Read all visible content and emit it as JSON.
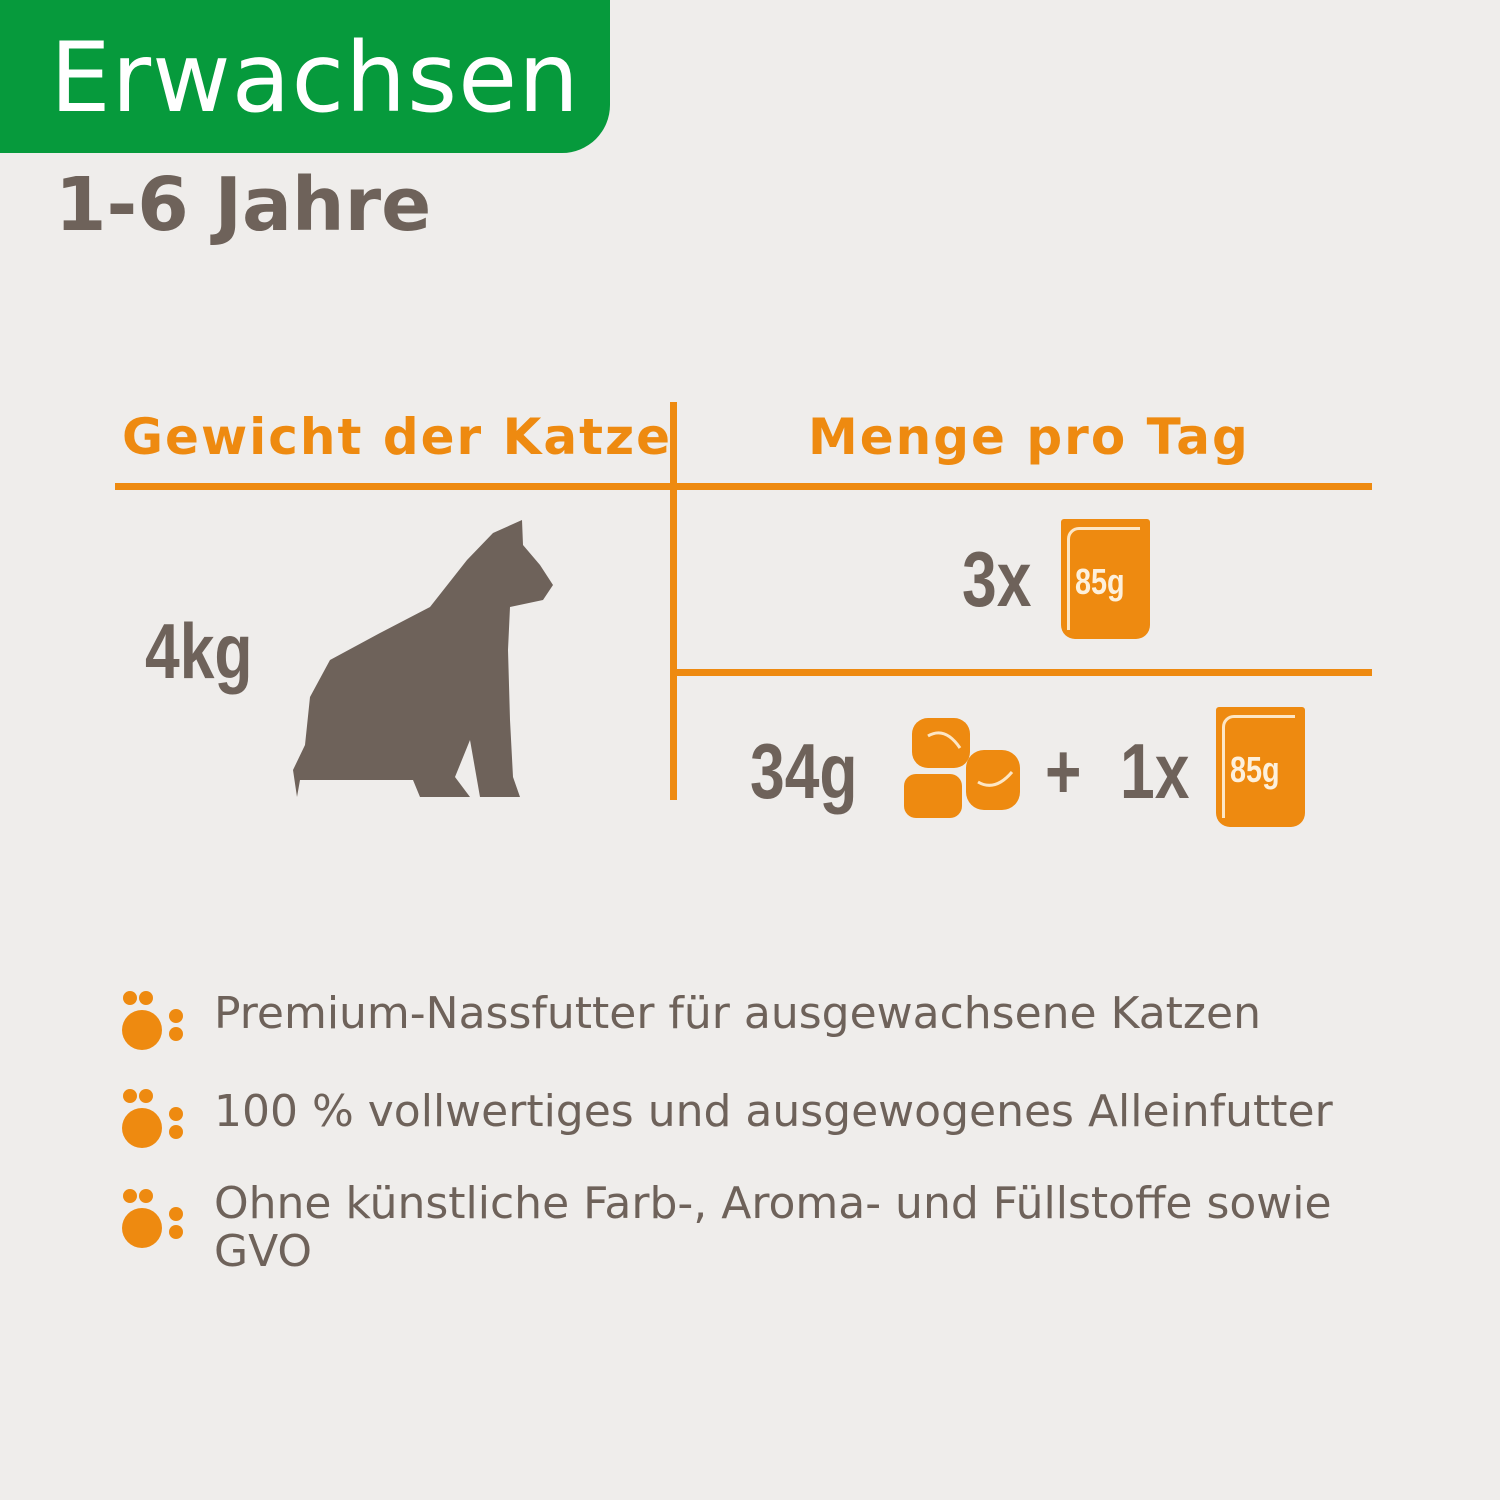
{
  "header": {
    "badge": "Erwachsen",
    "age_range": "1-6 Jahre"
  },
  "table": {
    "col1_header": "Gewicht der Katze",
    "col2_header": "Menge pro Tag",
    "weight": "4kg",
    "option1": {
      "count": "3x",
      "pouch_label": "85g"
    },
    "option2": {
      "dry_amount": "34g",
      "plus": "+",
      "count": "1x",
      "pouch_label": "85g"
    }
  },
  "bullets": [
    "Premium-Nassfutter für ausgewachsene Katzen",
    "100 % vollwertiges und ausgewogenes Alleinfutter",
    "Ohne künstliche Farb-, Aroma- und Füllstoffe sowie GVO"
  ],
  "colors": {
    "green": "#069a3c",
    "orange": "#ee8a10",
    "text": "#6e625a",
    "background": "#efedeb"
  }
}
